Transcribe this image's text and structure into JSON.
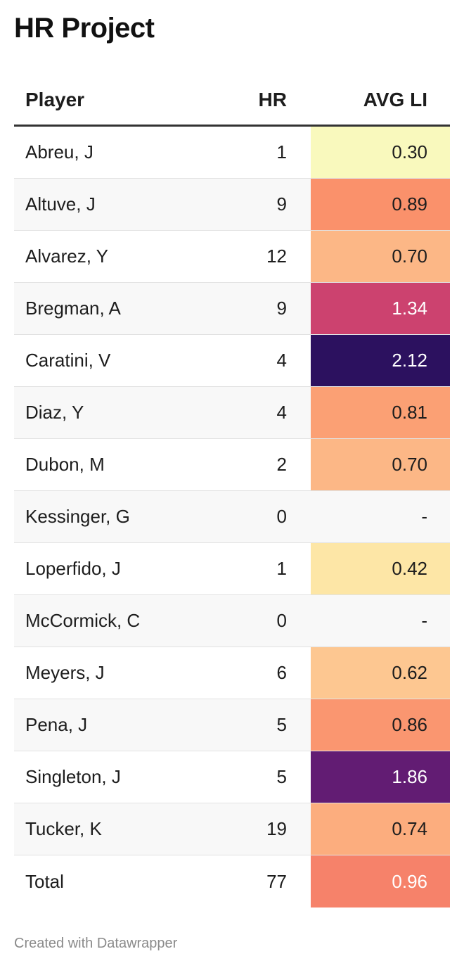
{
  "title": "HR Project",
  "footer": "Created with Datawrapper",
  "chart_data": {
    "type": "table",
    "columns": [
      "Player",
      "HR",
      "AVG LI"
    ],
    "rows": [
      {
        "player": "Abreu, J",
        "hr": "1",
        "li": "0.30",
        "color": "#f9f9bd",
        "text_color": "#1d1d1d"
      },
      {
        "player": "Altuve, J",
        "hr": "9",
        "li": "0.89",
        "color": "#fa916b",
        "text_color": "#1d1d1d"
      },
      {
        "player": "Alvarez, Y",
        "hr": "12",
        "li": "0.70",
        "color": "#fcb786",
        "text_color": "#1d1d1d"
      },
      {
        "player": "Bregman, A",
        "hr": "9",
        "li": "1.34",
        "color": "#cc426f",
        "text_color": "#ffffff"
      },
      {
        "player": "Caratini, V",
        "hr": "4",
        "li": "2.12",
        "color": "#2c115f",
        "text_color": "#ffffff"
      },
      {
        "player": "Diaz, Y",
        "hr": "4",
        "li": "0.81",
        "color": "#fba074",
        "text_color": "#1d1d1d"
      },
      {
        "player": "Dubon, M",
        "hr": "2",
        "li": "0.70",
        "color": "#fcb786",
        "text_color": "#1d1d1d"
      },
      {
        "player": "Kessinger, G",
        "hr": "0",
        "li": "-",
        "color": "",
        "text_color": "#1d1d1d"
      },
      {
        "player": "Loperfido, J",
        "hr": "1",
        "li": "0.42",
        "color": "#fde6a6",
        "text_color": "#1d1d1d"
      },
      {
        "player": "McCormick, C",
        "hr": "0",
        "li": "-",
        "color": "",
        "text_color": "#1d1d1d"
      },
      {
        "player": "Meyers, J",
        "hr": "6",
        "li": "0.62",
        "color": "#fdc791",
        "text_color": "#1d1d1d"
      },
      {
        "player": "Pena, J",
        "hr": "5",
        "li": "0.86",
        "color": "#fa9670",
        "text_color": "#1d1d1d"
      },
      {
        "player": "Singleton, J",
        "hr": "5",
        "li": "1.86",
        "color": "#621c73",
        "text_color": "#ffffff"
      },
      {
        "player": "Tucker, K",
        "hr": "19",
        "li": "0.74",
        "color": "#fcad7e",
        "text_color": "#1d1d1d"
      },
      {
        "player": "Total",
        "hr": "77",
        "li": "0.96",
        "color": "#f6826a",
        "text_color": "#ffffff"
      }
    ]
  }
}
